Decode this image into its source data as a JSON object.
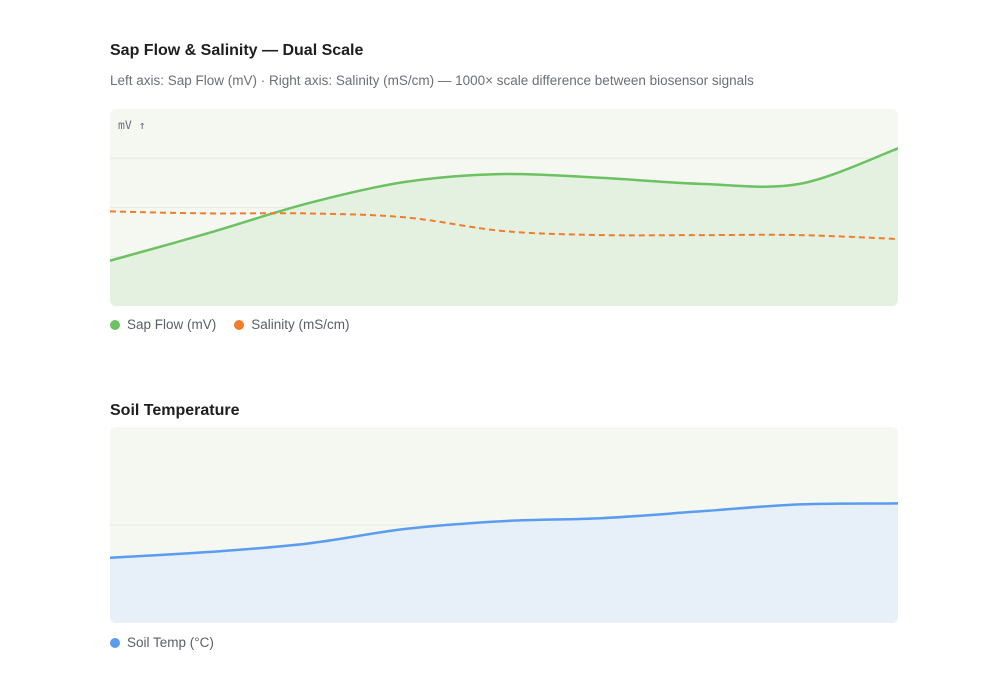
{
  "chart_data": [
    {
      "type": "line",
      "title": "Sap Flow & Salinity — Dual Scale",
      "subtitle": "Left axis: Sap Flow (mV) · Right axis: Salinity (mS/cm) — 1000× scale difference between biosensor signals",
      "y_unit_label": "mV ↑",
      "grid": true,
      "legend_position": "bottom-left",
      "legend": [
        {
          "name": "Sap Flow (mV)",
          "color": "#6cc162"
        },
        {
          "name": "Salinity (mS/cm)",
          "color": "#f07d2a"
        }
      ],
      "x": [
        0,
        1,
        2,
        3,
        4,
        5,
        6,
        7,
        8
      ],
      "ylim": [
        0,
        100
      ],
      "y2lim": [
        0,
        0.1
      ],
      "series": [
        {
          "name": "Sap Flow (mV)",
          "axis": "left",
          "color": "#6cc162",
          "style": "solid",
          "fill": "#e5f1e0",
          "values": [
            23,
            37,
            52,
            63,
            67,
            65,
            62,
            62,
            80
          ]
        },
        {
          "name": "Salinity (mS/cm)",
          "axis": "right",
          "color": "#f07d2a",
          "style": "dashed",
          "values": [
            0.048,
            0.047,
            0.047,
            0.045,
            0.038,
            0.036,
            0.036,
            0.036,
            0.034
          ]
        }
      ]
    },
    {
      "type": "area",
      "title": "Soil Temperature",
      "grid": true,
      "legend_position": "bottom-left",
      "legend": [
        {
          "name": "Soil Temp (°C)",
          "color": "#5a9cf0"
        }
      ],
      "x": [
        0,
        1,
        2,
        3,
        4,
        5,
        6,
        7,
        8
      ],
      "ylim": [
        0,
        40
      ],
      "series": [
        {
          "name": "Soil Temp (°C)",
          "axis": "left",
          "color": "#5a9cf0",
          "style": "solid",
          "fill": "#e7eff8",
          "values": [
            13.3,
            14.5,
            16.2,
            19.2,
            20.8,
            21.4,
            22.8,
            24.2,
            24.4
          ]
        }
      ]
    }
  ]
}
